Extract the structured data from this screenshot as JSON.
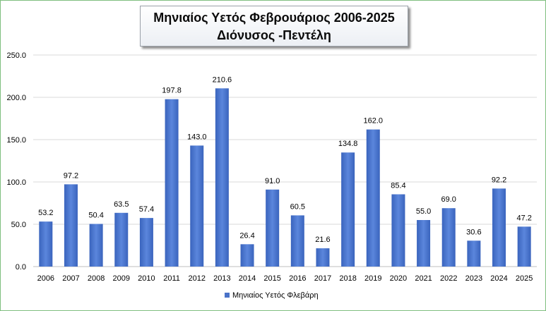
{
  "title": {
    "line1": "Μηνιαίος Υετός  Φεβρουάριος 2006-2025",
    "line2": "Διόνυσος -Πεντέλη"
  },
  "legend": {
    "label": "Μηνιαίος Υετός  Φλεβάρη",
    "color": "#4472c4"
  },
  "chart_data": {
    "type": "bar",
    "categories": [
      "2006",
      "2007",
      "2008",
      "2009",
      "2010",
      "2011",
      "2012",
      "2013",
      "2014",
      "2015",
      "2016",
      "2017",
      "2018",
      "2019",
      "2020",
      "2021",
      "2022",
      "2023",
      "2024",
      "2025"
    ],
    "series": [
      {
        "name": "Μηνιαίος Υετός  Φλεβάρη",
        "values": [
          53.2,
          97.2,
          50.4,
          63.5,
          57.4,
          197.8,
          143.0,
          210.6,
          26.4,
          91.0,
          60.5,
          21.6,
          134.8,
          162.0,
          85.4,
          55.0,
          69.0,
          30.6,
          92.2,
          47.2
        ],
        "labels": [
          "53.2",
          "97.2",
          "50.4",
          "63.5",
          "57.4",
          "197.8",
          "143.0",
          "210.6",
          "26.4",
          "91.0",
          "60.5",
          "21.6",
          "134.8",
          "162.0",
          "85.4",
          "55.0",
          "69.0",
          "30.6",
          "92.2",
          "47.2"
        ]
      }
    ],
    "ylim": [
      0,
      250
    ],
    "yticks": [
      "0.0",
      "50.0",
      "100.0",
      "150.0",
      "200.0",
      "250.0"
    ],
    "grid": true,
    "legend_position": "bottom",
    "xlabel": "",
    "ylabel": ""
  }
}
